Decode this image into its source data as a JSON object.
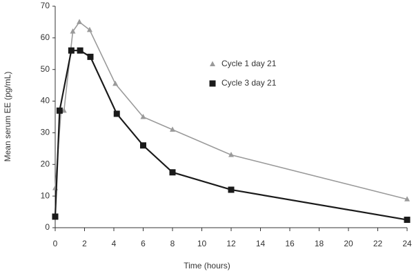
{
  "chart_data": {
    "type": "line",
    "xlabel": "Time (hours)",
    "ylabel": "Mean serum EE (pg/mL)",
    "xlim": [
      0,
      24
    ],
    "xticks": [
      0,
      2,
      4,
      6,
      8,
      10,
      12,
      14,
      16,
      18,
      20,
      22,
      24
    ],
    "ylim": [
      0,
      70
    ],
    "yticks": [
      0,
      10,
      20,
      30,
      40,
      50,
      60,
      70
    ],
    "grid": false,
    "legend_position": "center",
    "series": [
      {
        "name": "Cycle 1 day 21",
        "color": "#9a9a9a",
        "marker": "triangle",
        "x": [
          0,
          0.4,
          0.6,
          1.2,
          1.65,
          2.35,
          4.1,
          6,
          8,
          12,
          24
        ],
        "values": [
          12.5,
          37,
          37,
          62,
          65,
          62.5,
          45.5,
          35,
          31,
          23,
          9
        ]
      },
      {
        "name": "Cycle 3 day 21",
        "color": "#1a1a1a",
        "marker": "square",
        "x": [
          0,
          0.3,
          1.1,
          1.7,
          2.4,
          4.2,
          6,
          8,
          12,
          24
        ],
        "values": [
          3.5,
          37,
          56,
          56,
          54,
          36,
          26,
          17.5,
          12,
          2.5
        ]
      }
    ]
  }
}
